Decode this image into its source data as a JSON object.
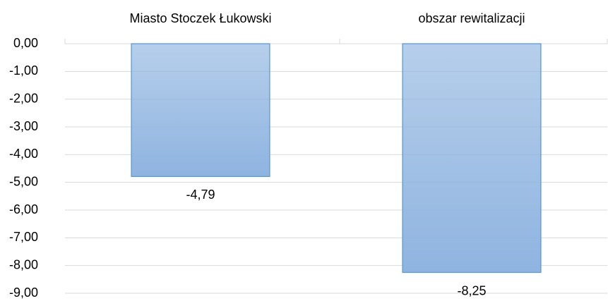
{
  "chart_data": {
    "type": "bar",
    "categories": [
      "Miasto Stoczek Łukowski",
      "obszar rewitalizacji"
    ],
    "values": [
      -4.79,
      -8.25
    ],
    "value_labels": [
      "-4,79",
      "-8,25"
    ],
    "color": "#8fb4e0",
    "ylim": [
      -9,
      0
    ],
    "yticks": [
      {
        "value": 0,
        "label": "0,00"
      },
      {
        "value": -1,
        "label": "-1,00"
      },
      {
        "value": -2,
        "label": "-2,00"
      },
      {
        "value": -3,
        "label": "-3,00"
      },
      {
        "value": -4,
        "label": "-4,00"
      },
      {
        "value": -5,
        "label": "-5,00"
      },
      {
        "value": -6,
        "label": "-6,00"
      },
      {
        "value": -7,
        "label": "-7,00"
      },
      {
        "value": -8,
        "label": "-8,00"
      },
      {
        "value": -9,
        "label": "-9,00"
      }
    ],
    "grid": true
  }
}
